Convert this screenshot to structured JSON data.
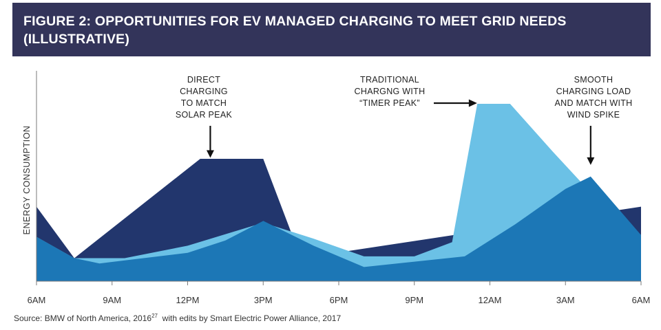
{
  "title": {
    "line1": "FIGURE 2: OPPORTUNITIES FOR EV MANAGED CHARGING TO MEET GRID NEEDS",
    "line2": "(ILLUSTRATIVE)"
  },
  "source": {
    "prefix": "Source: BMW of North America, 2016",
    "footnote": "27",
    "suffix": "  with edits by Smart Electric Power Alliance, 2017"
  },
  "colors": {
    "dark_navy": "#22366d",
    "light_blue": "#6bc1e6",
    "mid_blue": "#1c77b6",
    "banner": "#33345a"
  },
  "chart_data": {
    "type": "area",
    "title": "FIGURE 2: OPPORTUNITIES FOR EV MANAGED CHARGING TO MEET GRID NEEDS (ILLUSTRATIVE)",
    "xlabel": "",
    "ylabel": "ENERGY CONSUMPTION",
    "y_tick_labels": false,
    "x_tick_labels": [
      "6AM",
      "9AM",
      "12PM",
      "3PM",
      "6PM",
      "9PM",
      "12AM",
      "3AM",
      "6AM"
    ],
    "x_hours": [
      0,
      3,
      6,
      9,
      12,
      15,
      18,
      21,
      24
    ],
    "ylim": [
      0,
      100
    ],
    "grid": false,
    "series": [
      {
        "color": "#22366d",
        "x": [
          0,
          1.5,
          6.5,
          9,
          10.5,
          24
        ],
        "y": [
          42,
          13,
          69,
          69,
          13,
          42
        ]
      },
      {
        "color": "#6bc1e6",
        "x": [
          0,
          1.5,
          3.5,
          6,
          9,
          11,
          13,
          15,
          16.5,
          17.5,
          18.8,
          20.5,
          22,
          24
        ],
        "y": [
          25,
          13,
          13,
          20,
          33,
          24,
          14,
          14,
          22,
          100,
          100,
          73,
          50,
          26
        ]
      },
      {
        "color": "#1c77b6",
        "x": [
          0,
          1.5,
          2.5,
          6,
          7.5,
          9,
          11,
          13,
          15,
          17,
          19,
          21,
          22,
          24
        ],
        "y": [
          25,
          13,
          10,
          16,
          23,
          34,
          20,
          8,
          11,
          14,
          32,
          52,
          59,
          26
        ]
      }
    ],
    "annotations": [
      {
        "lines": [
          "DIRECT",
          "CHARGING",
          "TO MATCH",
          "SOLAR PEAK"
        ],
        "arrow": "down",
        "x": 6.9,
        "y": 68
      },
      {
        "lines": [
          "TRADITIONAL",
          "CHARGNG WITH",
          "“TIMER PEAK”"
        ],
        "arrow": "right",
        "x": 17.6,
        "y": 100
      },
      {
        "lines": [
          "SMOOTH",
          "CHARGING LOAD",
          "AND MATCH WITH",
          "WIND SPIKE"
        ],
        "arrow": "down",
        "x": 22,
        "y": 64
      }
    ]
  }
}
